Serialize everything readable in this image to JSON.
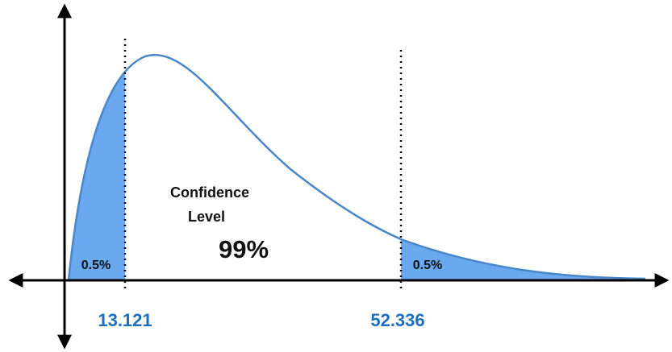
{
  "confidence_label": [
    "Confidence",
    "Level"
  ],
  "confidence_value": "99%",
  "tail_labels": [
    "0.5%",
    "0.5%"
  ],
  "critical_values": [
    "13.121",
    "52.336"
  ]
}
